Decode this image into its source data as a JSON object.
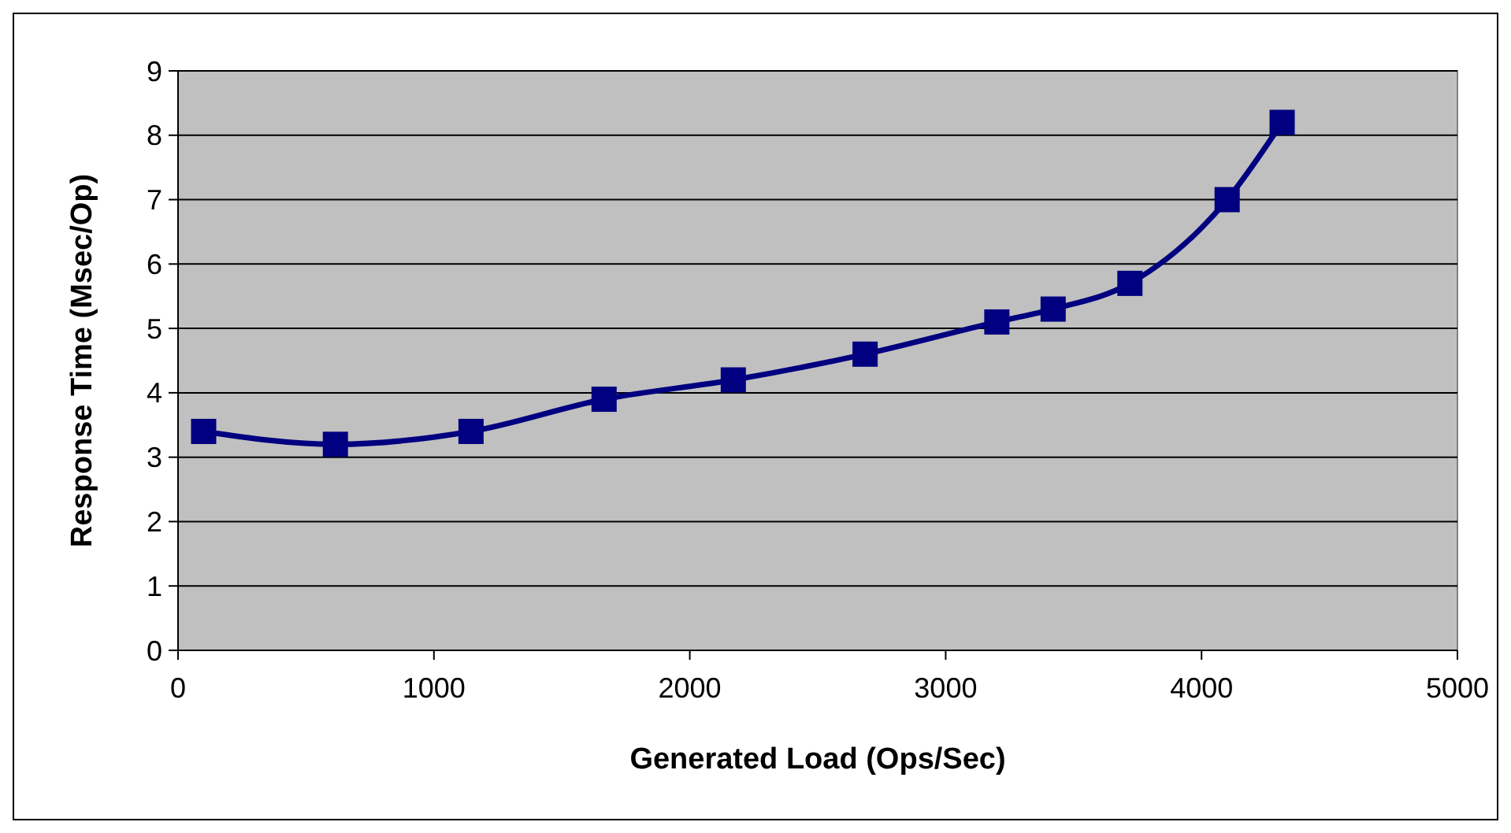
{
  "chart_data": {
    "type": "line",
    "xlabel": "Generated Load (Ops/Sec)",
    "ylabel": "Response Time (Msec/Op)",
    "x": [
      100,
      615,
      1145,
      1665,
      2170,
      2685,
      3200,
      3420,
      3720,
      4100,
      4315
    ],
    "series": [
      {
        "color": "#000080",
        "values": [
          3.4,
          3.2,
          3.4,
          3.9,
          4.2,
          4.6,
          5.1,
          5.3,
          5.7,
          7.0,
          8.2
        ]
      }
    ],
    "xlim": [
      0,
      5000
    ],
    "xticks": [
      0,
      1000,
      2000,
      3000,
      4000,
      5000
    ],
    "ylim": [
      0,
      9
    ],
    "yticks": [
      0,
      1,
      2,
      3,
      4,
      5,
      6,
      7,
      8,
      9
    ],
    "grid": "y",
    "marker": "square",
    "line_style": "solid"
  }
}
